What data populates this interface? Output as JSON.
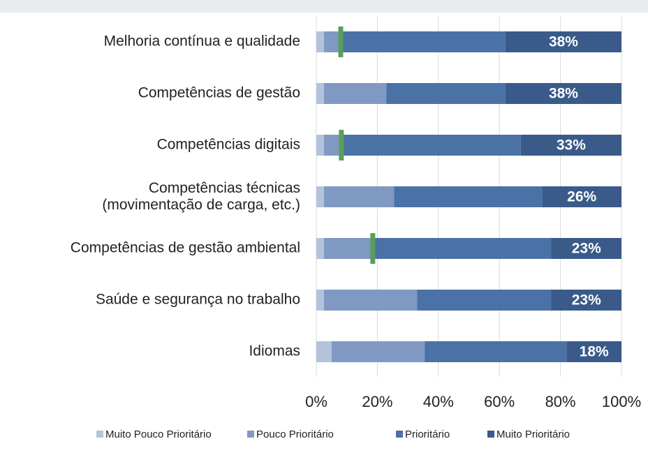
{
  "chart_data": {
    "type": "stacked_barh",
    "categories": [
      "Melhoria contínua e qualidade",
      "Competências de gestão",
      "Competências digitais",
      "Competências técnicas\n(movimentação de carga, etc.)",
      "Competências de gestão ambiental",
      "Saúde e segurança no trabalho",
      "Idiomas"
    ],
    "series": [
      {
        "name": "Muito Pouco Prioritário",
        "color": "#b4c3dc",
        "values": [
          2.5,
          2.5,
          2.5,
          2.5,
          2.5,
          2.5,
          5
        ]
      },
      {
        "name": "Pouco Prioritário",
        "color": "#7f99c2",
        "values": [
          6,
          20.5,
          5.5,
          23,
          16,
          30.5,
          30.5
        ]
      },
      {
        "name": "Prioritário",
        "color": "#4a72a6",
        "values": [
          53.5,
          39,
          59,
          48.5,
          58.5,
          44,
          46.5
        ]
      },
      {
        "name": "Muito Prioritário",
        "color": "#3a5a8a",
        "values": [
          38,
          38,
          33,
          26,
          23,
          23,
          18
        ],
        "value_labels": [
          "38%",
          "38%",
          "33%",
          "26%",
          "23%",
          "23%",
          "18%"
        ]
      }
    ],
    "markers": {
      "color": "#5a9e5a",
      "values": [
        8,
        null,
        8.2,
        null,
        18.5,
        null,
        null
      ]
    },
    "xlim": [
      0,
      100
    ],
    "xticks": [
      {
        "value": 0,
        "label": "0%"
      },
      {
        "value": 20,
        "label": "20%"
      },
      {
        "value": 40,
        "label": "40%"
      },
      {
        "value": 60,
        "label": "60%"
      },
      {
        "value": 80,
        "label": "80%"
      },
      {
        "value": 100,
        "label": "100%"
      }
    ],
    "grid": true,
    "legend": "bottom"
  }
}
